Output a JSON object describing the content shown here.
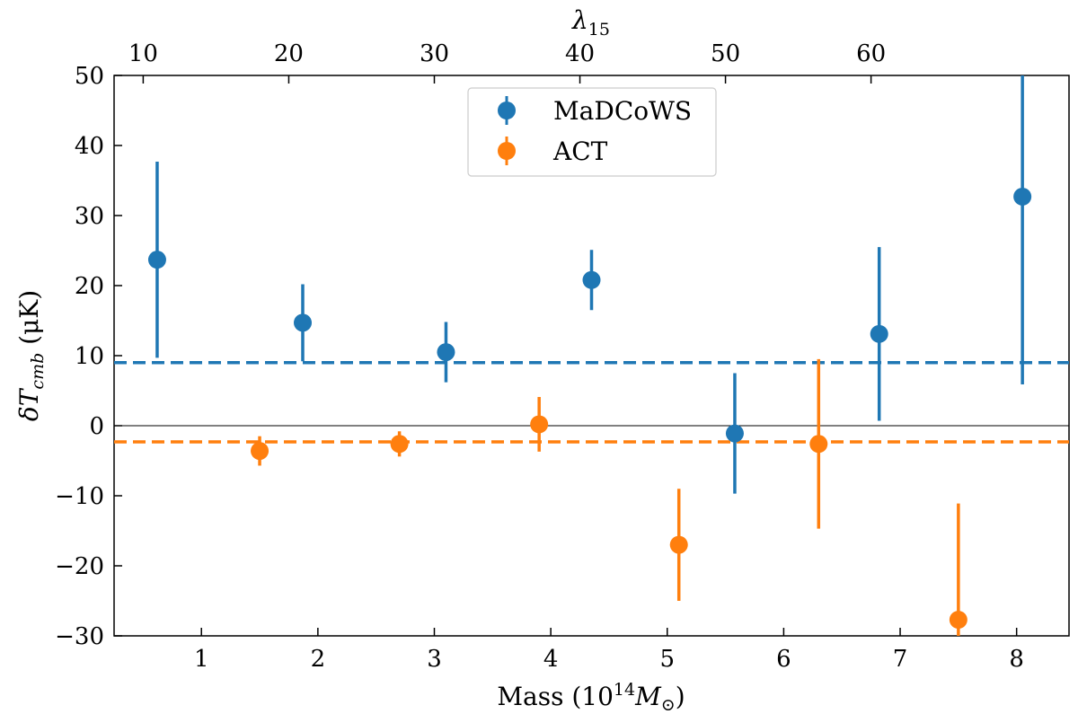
{
  "chart_data": {
    "type": "scatter",
    "title": "",
    "xlabel": "Mass (10^14 M⊙)",
    "xlabel_parts": {
      "prefix": "Mass (10",
      "sup": "14",
      "var": "M",
      "sub": "⊙",
      "suffix": ")"
    },
    "ylabel": "δT_cmb (μK)",
    "ylabel_parts": {
      "var": "δT",
      "sub": "cmb",
      "suffix": " (μK)"
    },
    "top_xlabel": "λ_15",
    "top_xlabel_parts": {
      "var": "λ",
      "sub": "15"
    },
    "xlim": [
      0.25,
      8.45
    ],
    "ylim": [
      -30,
      50
    ],
    "x_ticks": [
      1,
      2,
      3,
      4,
      5,
      6,
      7,
      8
    ],
    "y_ticks": [
      -30,
      -20,
      -10,
      0,
      10,
      20,
      30,
      40,
      50
    ],
    "top_ticks": [
      {
        "label": "10",
        "x": 0.5
      },
      {
        "label": "20",
        "x": 1.75
      },
      {
        "label": "30",
        "x": 3.0
      },
      {
        "label": "40",
        "x": 4.25
      },
      {
        "label": "50",
        "x": 5.5
      },
      {
        "label": "60",
        "x": 6.75
      }
    ],
    "zero_line": 0,
    "legend": {
      "position": "top-center"
    },
    "series": [
      {
        "name": "MaDCoWS",
        "color": "#1f77b4",
        "mean_line": 9,
        "points": [
          {
            "x": 0.62,
            "y": 23.7,
            "err": 14.0
          },
          {
            "x": 1.87,
            "y": 14.7,
            "err": 5.5
          },
          {
            "x": 3.1,
            "y": 10.5,
            "err": 4.3
          },
          {
            "x": 4.35,
            "y": 20.8,
            "err": 4.3
          },
          {
            "x": 5.58,
            "y": -1.1,
            "err": 8.6
          },
          {
            "x": 6.82,
            "y": 13.1,
            "err": 12.4
          },
          {
            "x": 8.05,
            "y": 32.7,
            "err": 26.8
          }
        ]
      },
      {
        "name": "ACT",
        "color": "#ff7f0e",
        "mean_line": -2.3,
        "points": [
          {
            "x": 1.5,
            "y": -3.6,
            "err": 2.1
          },
          {
            "x": 2.7,
            "y": -2.6,
            "err": 1.8
          },
          {
            "x": 3.9,
            "y": 0.2,
            "err": 3.9
          },
          {
            "x": 5.1,
            "y": -17.0,
            "err": 8.0
          },
          {
            "x": 6.3,
            "y": -2.6,
            "err": 12.1
          },
          {
            "x": 7.5,
            "y": -27.7,
            "err": 16.6
          }
        ]
      }
    ]
  }
}
